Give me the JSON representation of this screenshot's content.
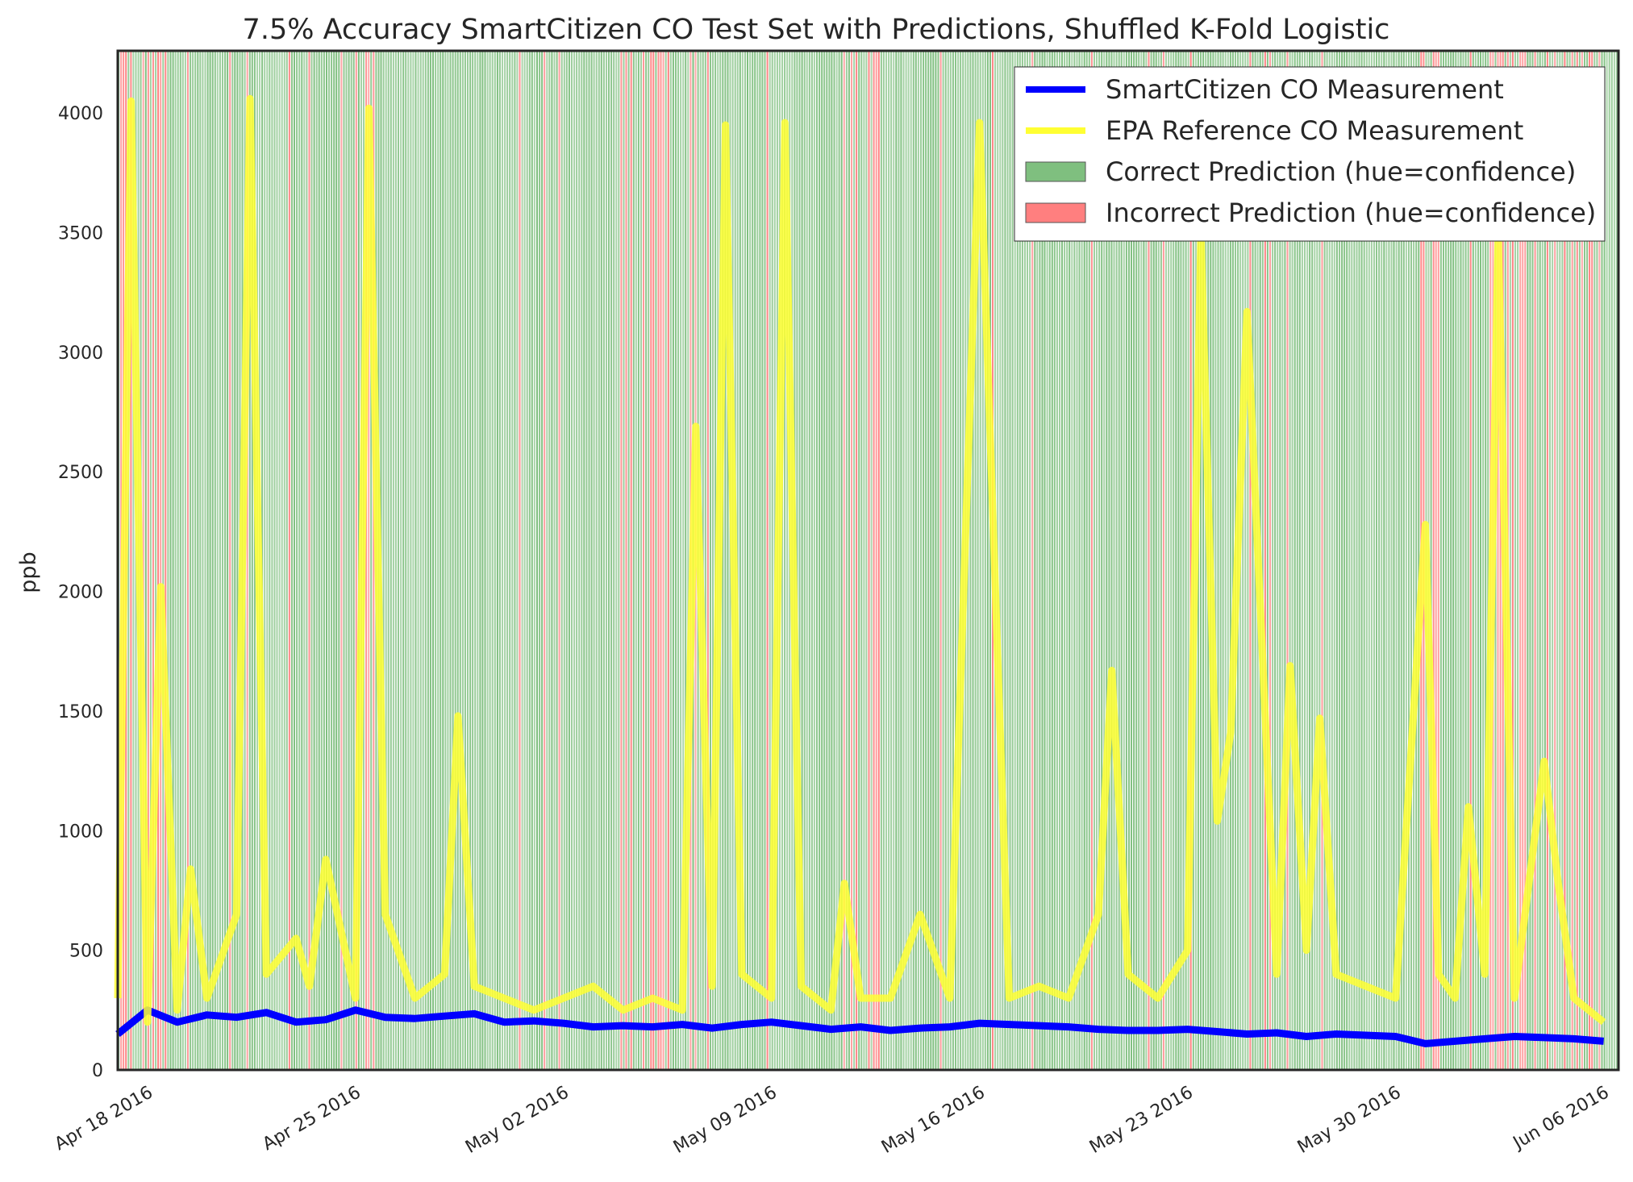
{
  "chart_data": {
    "type": "line",
    "title": "7.5% Accuracy SmartCitizen CO Test Set with Predictions, Shuffled K-Fold Logistic",
    "xlabel": "",
    "ylabel": "ppb",
    "x_range": [
      "2016-04-17",
      "2016-06-06"
    ],
    "ylim": [
      0,
      4260
    ],
    "y_ticks": [
      0,
      500,
      1000,
      1500,
      2000,
      2500,
      3000,
      3500,
      4000
    ],
    "x_ticks": [
      {
        "date": "2016-04-18",
        "label": "Apr 18 2016"
      },
      {
        "date": "2016-04-25",
        "label": "Apr 25 2016"
      },
      {
        "date": "2016-05-02",
        "label": "May 02 2016"
      },
      {
        "date": "2016-05-09",
        "label": "May 09 2016"
      },
      {
        "date": "2016-05-16",
        "label": "May 16 2016"
      },
      {
        "date": "2016-05-23",
        "label": "May 23 2016"
      },
      {
        "date": "2016-05-30",
        "label": "May 30 2016"
      },
      {
        "date": "2016-06-06",
        "label": "Jun 06 2016"
      }
    ],
    "grid": false,
    "legend_position": "top-right",
    "colors": {
      "smartcitizen": "#0000ff",
      "epa": "#ffff33",
      "correct": "#7fbf7f",
      "incorrect": "#ff7f7f",
      "overlap": "#b2ab5a"
    },
    "legend": [
      {
        "label": "SmartCitizen CO Measurement",
        "kind": "line",
        "color": "#0000ff"
      },
      {
        "label": "EPA Reference CO Measurement",
        "kind": "line",
        "color": "#ffff33"
      },
      {
        "label": "Correct Prediction (hue=confidence)",
        "kind": "patch",
        "color": "#7fbf7f"
      },
      {
        "label": "Incorrect Prediction (hue=confidence)",
        "kind": "patch",
        "color": "#ff7f7f"
      }
    ],
    "incorrect_prediction_dates": [
      "2016-04-17",
      "2016-04-18",
      "2016-04-25",
      "2016-05-05",
      "2016-05-12",
      "2016-05-26",
      "2016-05-31",
      "2016-06-03",
      "2016-06-05"
    ],
    "series": [
      {
        "name": "SmartCitizen CO Measurement",
        "dates": [
          "2016-04-17",
          "2016-04-18",
          "2016-04-19",
          "2016-04-20",
          "2016-04-21",
          "2016-04-22",
          "2016-04-23",
          "2016-04-24",
          "2016-04-25",
          "2016-04-26",
          "2016-04-27",
          "2016-04-28",
          "2016-04-29",
          "2016-04-30",
          "2016-05-01",
          "2016-05-02",
          "2016-05-03",
          "2016-05-04",
          "2016-05-05",
          "2016-05-06",
          "2016-05-07",
          "2016-05-08",
          "2016-05-09",
          "2016-05-10",
          "2016-05-11",
          "2016-05-12",
          "2016-05-13",
          "2016-05-14",
          "2016-05-15",
          "2016-05-16",
          "2016-05-17",
          "2016-05-18",
          "2016-05-19",
          "2016-05-20",
          "2016-05-21",
          "2016-05-22",
          "2016-05-23",
          "2016-05-24",
          "2016-05-25",
          "2016-05-26",
          "2016-05-27",
          "2016-05-28",
          "2016-05-29",
          "2016-05-30",
          "2016-05-31",
          "2016-06-01",
          "2016-06-02",
          "2016-06-03",
          "2016-06-04",
          "2016-06-05",
          "2016-06-06"
        ],
        "values": [
          150,
          250,
          200,
          230,
          220,
          240,
          200,
          210,
          250,
          220,
          215,
          225,
          235,
          200,
          205,
          195,
          180,
          185,
          180,
          190,
          175,
          190,
          200,
          185,
          170,
          180,
          165,
          175,
          180,
          195,
          190,
          185,
          180,
          170,
          165,
          165,
          170,
          160,
          150,
          155,
          140,
          150,
          145,
          140,
          110,
          120,
          130,
          140,
          135,
          130,
          120
        ]
      },
      {
        "name": "EPA Reference CO Measurement",
        "dates": [
          "2016-04-17",
          "2016-04-17",
          "2016-04-18",
          "2016-04-18",
          "2016-04-19",
          "2016-04-19",
          "2016-04-20",
          "2016-04-21",
          "2016-04-21",
          "2016-04-22",
          "2016-04-23",
          "2016-04-23",
          "2016-04-24",
          "2016-04-25",
          "2016-04-25",
          "2016-04-26",
          "2016-04-27",
          "2016-04-28",
          "2016-04-28",
          "2016-04-29",
          "2016-04-30",
          "2016-05-01",
          "2016-05-02",
          "2016-05-03",
          "2016-05-04",
          "2016-05-05",
          "2016-05-06",
          "2016-05-06",
          "2016-05-07",
          "2016-05-07",
          "2016-05-08",
          "2016-05-09",
          "2016-05-09",
          "2016-05-10",
          "2016-05-11",
          "2016-05-11",
          "2016-05-12",
          "2016-05-13",
          "2016-05-14",
          "2016-05-15",
          "2016-05-16",
          "2016-05-17",
          "2016-05-18",
          "2016-05-19",
          "2016-05-20",
          "2016-05-20",
          "2016-05-21",
          "2016-05-22",
          "2016-05-23",
          "2016-05-23",
          "2016-05-24",
          "2016-05-24",
          "2016-05-25",
          "2016-05-26",
          "2016-05-26",
          "2016-05-27",
          "2016-05-27",
          "2016-05-28",
          "2016-05-29",
          "2016-05-30",
          "2016-05-31",
          "2016-05-31",
          "2016-06-01",
          "2016-06-01",
          "2016-06-02",
          "2016-06-02",
          "2016-06-03",
          "2016-06-04",
          "2016-06-04",
          "2016-06-05",
          "2016-06-06"
        ],
        "values": [
          300,
          4050,
          200,
          2020,
          250,
          840,
          300,
          650,
          4060,
          400,
          550,
          350,
          880,
          300,
          4020,
          650,
          300,
          400,
          1480,
          350,
          300,
          250,
          300,
          350,
          250,
          300,
          250,
          2690,
          350,
          3950,
          400,
          300,
          3960,
          350,
          250,
          780,
          300,
          300,
          650,
          300,
          3960,
          300,
          350,
          300,
          650,
          1670,
          400,
          300,
          500,
          3500,
          1040,
          1410,
          3170,
          400,
          1690,
          500,
          1470,
          400,
          350,
          300,
          2280,
          400,
          300,
          1100,
          400,
          3500,
          300,
          1290,
          800,
          300,
          200
        ]
      }
    ]
  }
}
